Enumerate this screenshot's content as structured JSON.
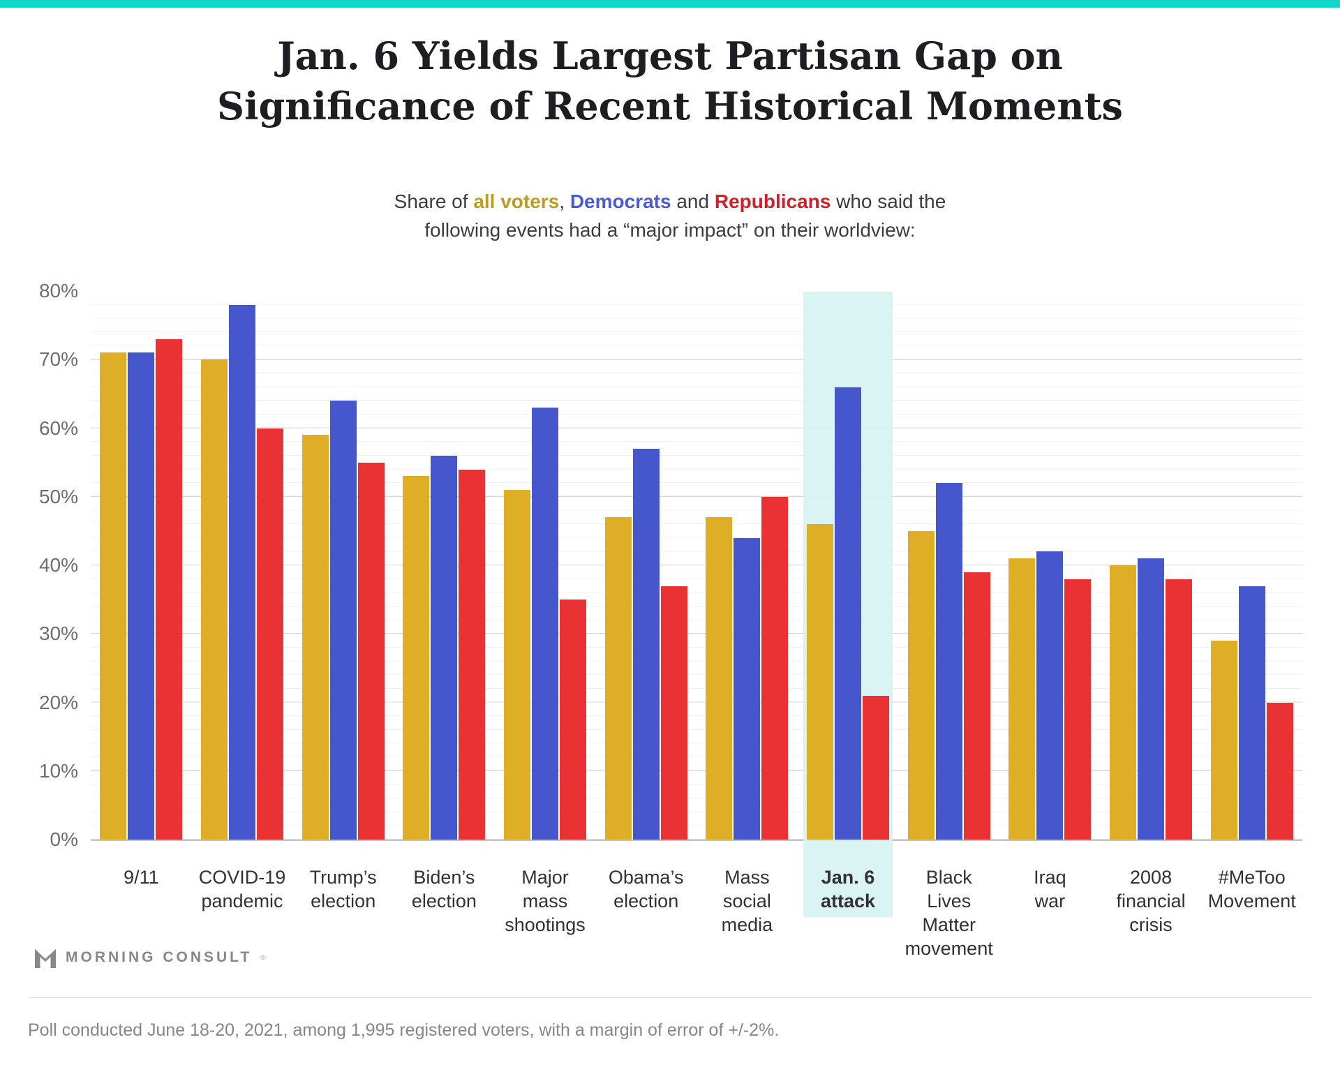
{
  "page": {
    "accent_bar_color": "#12d6c8"
  },
  "header": {
    "title_line1": "Jan. 6 Yields Largest Partisan Gap on",
    "title_line2": "Significance of Recent Historical Moments",
    "subtitle": {
      "prefix": "Share of ",
      "all_voters": "all voters",
      "sep1": ", ",
      "democrats": "Democrats",
      "sep2": " and ",
      "republicans": "Republicans",
      "suffix": " who said the",
      "line2": "following events had a “major impact” on their worldview:"
    },
    "subtitle_colors": {
      "all_voters": "#bf9b1f",
      "democrats": "#4a5ad3",
      "republicans": "#cf202b"
    }
  },
  "chart_data": {
    "type": "bar",
    "title": "Jan. 6 Yields Largest Partisan Gap on Significance of Recent Historical Moments",
    "xlabel": "",
    "ylabel": "",
    "ylim": [
      0,
      80
    ],
    "ytick_labels": [
      "0%",
      "10%",
      "20%",
      "30%",
      "40%",
      "50%",
      "60%",
      "70%",
      "80%"
    ],
    "grid": {
      "minor_step_pct": 2,
      "major_step_pct": 10
    },
    "legend_position": "in-subtitle",
    "categories": [
      "9/11",
      "COVID-19\npandemic",
      "Trump’s\nelection",
      "Biden’s\nelection",
      "Major\nmass\nshootings",
      "Obama’s\nelection",
      "Mass\nsocial\nmedia",
      "Jan. 6\nattack",
      "Black\nLives\nMatter\nmovement",
      "Iraq\nwar",
      "2008\nfinancial\ncrisis",
      "#MeToo\nMovement"
    ],
    "series": [
      {
        "name": "All voters",
        "color": "#dfae27",
        "values": [
          71,
          70,
          59,
          53,
          51,
          47,
          47,
          46,
          45,
          41,
          40,
          29
        ]
      },
      {
        "name": "Democrats",
        "color": "#4657cd",
        "values": [
          71,
          78,
          64,
          56,
          63,
          57,
          44,
          66,
          52,
          42,
          41,
          37
        ]
      },
      {
        "name": "Republicans",
        "color": "#ea3235",
        "values": [
          73,
          60,
          55,
          54,
          35,
          37,
          50,
          21,
          39,
          38,
          38,
          20
        ]
      }
    ],
    "highlight": {
      "category_index": 7,
      "band_color": "#d5f3f2"
    }
  },
  "footer": {
    "logo_text": "MORNING CONSULT",
    "logo_reg": "®",
    "note": "Poll conducted June 18-20, 2021, among 1,995 registered voters, with a margin of error of +/-2%."
  }
}
